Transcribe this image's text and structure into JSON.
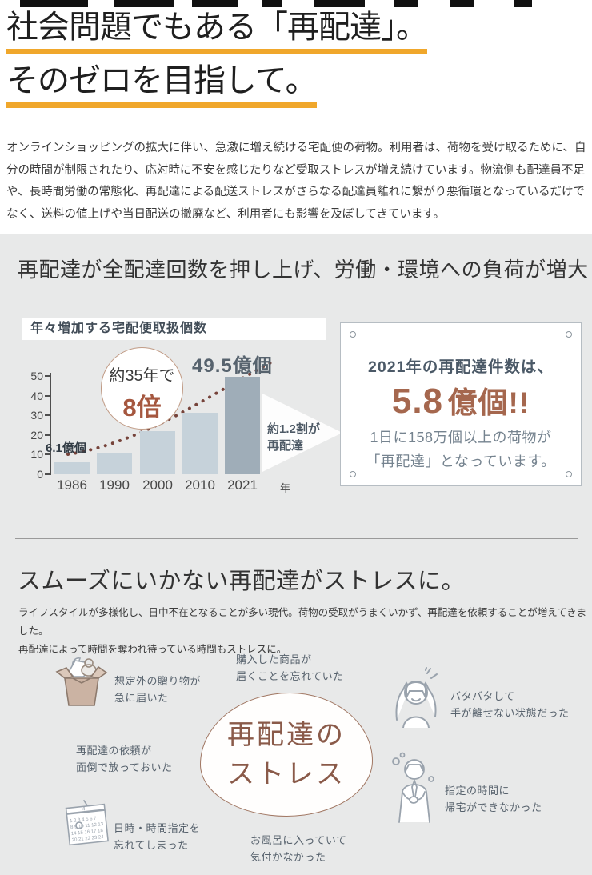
{
  "hero": {
    "title_line1": "社会問題でもある「再配達」。",
    "title_line2": "そのゼロを目指して。",
    "intro": "オンラインショッピングの拡大に伴い、急激に増え続ける宅配便の荷物。利用者は、荷物を受け取るために、自分の時間が制限されたり、応対時に不安を感じたりなど受取ストレスが増え続けています。物流側も配達員不足や、長時間労働の常態化、再配達による配送ストレスがさらなる配達員離れに繋がり悪循環となっているだけでなく、送料の値上げや当日配送の撤廃など、利用者にも影響を及ぼしてきています。",
    "underline_color": "#f0a72b"
  },
  "section_load": {
    "heading": "再配達が全配達回数を押し上げ、労働・環境への負荷が増大",
    "callout": {
      "line1": "2021年の再配達件数は、",
      "big_value": "5.8",
      "big_unit": "億個!!",
      "line3": "1日に158万個以上の荷物が",
      "line4": "「再配達」となっています。",
      "accent_color": "#a5674e"
    }
  },
  "chart_data": {
    "type": "bar",
    "title": "年々増加する宅配便取扱個数",
    "categories": [
      "1986",
      "1990",
      "2000",
      "2010",
      "2021"
    ],
    "values": [
      6.1,
      11,
      22,
      31.5,
      49.5
    ],
    "unit_suffix": "年",
    "ylabel": "",
    "xlabel": "",
    "ylim": [
      0,
      50
    ],
    "yticks": [
      0,
      10,
      20,
      30,
      40,
      50
    ],
    "grid": false,
    "legend": "none",
    "bar_color": "#c6d2da",
    "highlight_index": 4,
    "highlight_color": "#9fadb8",
    "trend_line": "dotted-rising-curve",
    "annotations": {
      "first_value_label": "6.1億個",
      "last_value_label": "49.5億個",
      "badge_line1": "約35年で",
      "badge_line2": "8倍",
      "arrow_line1": "約1.2割が",
      "arrow_line2": "再配達"
    }
  },
  "section_stress": {
    "heading": "スムーズにいかない再配達がストレスに。",
    "desc_line1": "ライフスタイルが多様化し、日中不在となることが多い現代。荷物の受取がうまくいかず、再配達を依頼することが増えてきました。",
    "desc_line2": "再配達によって時間を奪われ待っている時間もストレスに。",
    "center_line1": "再配達の",
    "center_line2": "ストレス",
    "items": {
      "gift": {
        "line1": "想定外の贈り物が",
        "line2": "急に届いた"
      },
      "purchase": {
        "line1": "購入した商品が",
        "line2": "届くことを忘れていた"
      },
      "request": {
        "line1": "再配達の依頼が",
        "line2": "面倒で放っておいた"
      },
      "busy": {
        "line1": "バタバタして",
        "line2": "手が離せない状態だった"
      },
      "schedule": {
        "line1": "日時・時間指定を",
        "line2": "忘れてしまった"
      },
      "bath": {
        "line1": "お風呂に入っていて",
        "line2": "気付かなかった"
      },
      "overtime": {
        "line1": "指定の時間に",
        "line2": "帰宅ができなかった"
      }
    }
  }
}
